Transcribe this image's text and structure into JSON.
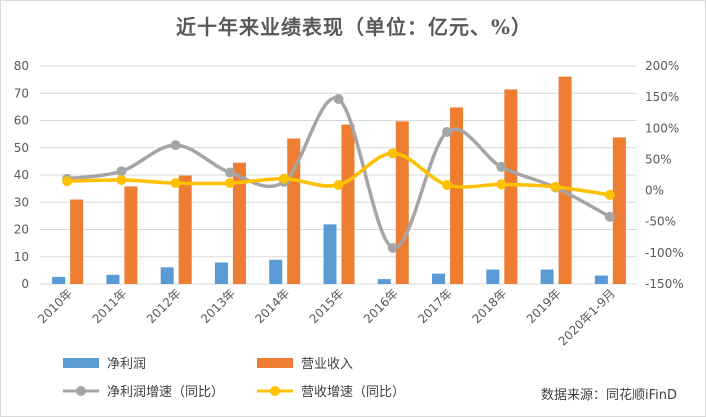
{
  "title": "近十年来业绩表现（单位：亿元、%）",
  "source": "数据来源：同花顺iFinD",
  "chart_data": {
    "type": "bar+line",
    "title": "近十年来业绩表现（单位：亿元、%）",
    "categories": [
      "2010年",
      "2011年",
      "2012年",
      "2013年",
      "2014年",
      "2015年",
      "2016年",
      "2017年",
      "2018年",
      "2019年",
      "2020年1-9月"
    ],
    "y_left": {
      "range": [
        0,
        80
      ],
      "ticks": [
        "0",
        "10",
        "20",
        "30",
        "40",
        "50",
        "60",
        "70",
        "80"
      ]
    },
    "y_right": {
      "range": [
        -150,
        200
      ],
      "ticks": [
        "-150%",
        "-100%",
        "-50%",
        "0%",
        "50%",
        "100%",
        "150%",
        "200%"
      ]
    },
    "grid": true,
    "legend_position": "bottom",
    "series": [
      {
        "name": "净利润",
        "type": "bar",
        "axis": "left",
        "color": "#5B9BD5",
        "values": [
          2.6,
          3.4,
          6.1,
          7.9,
          8.9,
          21.9,
          1.8,
          3.8,
          5.3,
          5.3,
          3.1
        ]
      },
      {
        "name": "营业收入",
        "type": "bar",
        "axis": "left",
        "color": "#ED7D31",
        "values": [
          31.0,
          35.8,
          39.8,
          44.5,
          53.4,
          58.5,
          59.7,
          64.8,
          71.4,
          76.1,
          53.8
        ]
      },
      {
        "name": "净利润增速（同比）",
        "type": "line",
        "axis": "right",
        "color": "#A5A5A5",
        "values": [
          19,
          31,
          73,
          29,
          14,
          147,
          -92,
          94,
          38,
          5,
          -42
        ]
      },
      {
        "name": "营收增速（同比）",
        "type": "line",
        "axis": "right",
        "color": "#FFC000",
        "values": [
          15,
          17,
          12,
          12,
          19,
          9,
          60,
          9,
          10,
          6,
          -7
        ]
      }
    ]
  }
}
